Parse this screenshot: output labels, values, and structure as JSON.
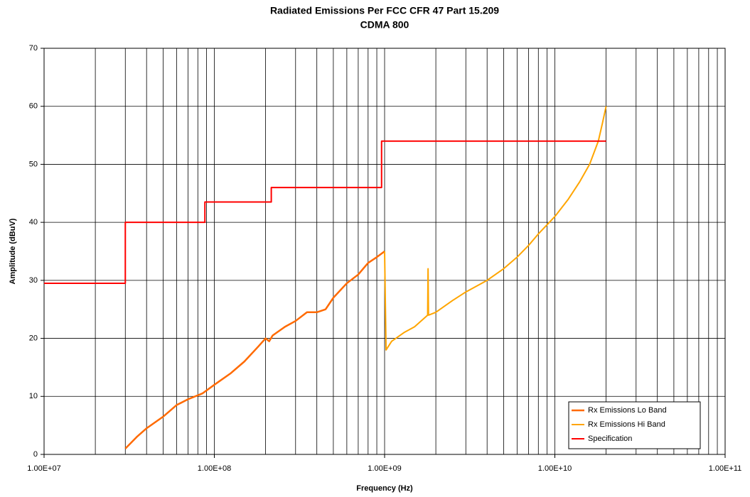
{
  "chart_data": {
    "type": "line",
    "title": "Radiated Emissions Per FCC CFR 47 Part 15.209",
    "subtitle": "CDMA 800",
    "x_label": "Frequency (Hz)",
    "y_label": "Amplitude (dBuV)",
    "log_x": true,
    "grid": true,
    "legend": "lower right",
    "xlim": [
      10000000,
      100000000000
    ],
    "ylim": [
      0,
      70
    ],
    "xticks": [
      {
        "value": 10000000,
        "label": "1.00E+07"
      },
      {
        "value": 100000000,
        "label": "1.00E+08"
      },
      {
        "value": 1000000000,
        "label": "1.00E+09"
      },
      {
        "value": 10000000000,
        "label": "1.00E+10"
      },
      {
        "value": 100000000000,
        "label": "1.00E+11"
      }
    ],
    "xminorticks": [
      20000000,
      30000000,
      40000000,
      50000000,
      60000000,
      70000000,
      80000000,
      90000000,
      200000000,
      300000000,
      400000000,
      500000000,
      600000000,
      700000000,
      800000000,
      900000000,
      2000000000,
      3000000000,
      4000000000,
      5000000000,
      6000000000,
      7000000000,
      8000000000,
      9000000000,
      20000000000,
      30000000000,
      40000000000,
      50000000000,
      60000000000,
      70000000000,
      80000000000,
      90000000000
    ],
    "yticks": [
      0,
      10,
      20,
      30,
      40,
      50,
      60,
      70
    ],
    "series": [
      {
        "name": "Rx Emissions Lo Band",
        "color": "#ff6a00",
        "width": 2.5,
        "x": [
          30000000,
          35000000,
          40000000,
          50000000,
          60000000,
          70000000,
          85000000,
          100000000,
          125000000,
          150000000,
          180000000,
          200000000,
          210000000,
          220000000,
          260000000,
          300000000,
          350000000,
          400000000,
          450000000,
          500000000,
          600000000,
          700000000,
          800000000,
          900000000,
          1000000000
        ],
        "values": [
          1,
          3,
          4.5,
          6.5,
          8.5,
          9.5,
          10.5,
          12,
          14,
          16,
          18.5,
          20,
          19.5,
          20.5,
          22,
          23,
          24.5,
          24.5,
          25,
          27,
          29.5,
          31,
          33,
          34,
          35
        ]
      },
      {
        "name": "Rx Emissions Hi Band",
        "color": "#ffa500",
        "width": 2,
        "x": [
          1000000000,
          1020000000,
          1100000000,
          1300000000,
          1500000000,
          1790000000,
          1800000000,
          1810000000,
          2000000000,
          2500000000,
          3000000000,
          4000000000,
          5000000000,
          6000000000,
          7000000000,
          8000000000,
          10000000000,
          12000000000,
          14000000000,
          16000000000,
          18000000000,
          19000000000,
          20000000000
        ],
        "values": [
          35,
          18,
          19.5,
          21,
          22,
          24,
          32,
          24,
          24.5,
          26.5,
          28,
          30,
          32,
          34,
          36,
          38,
          41,
          44,
          47,
          50,
          54,
          57,
          60
        ]
      },
      {
        "name": "Specification",
        "color": "#ff0000",
        "width": 2,
        "x": [
          10000000,
          30000000,
          30000000,
          88000000,
          88000000,
          216000000,
          216000000,
          960000000,
          960000000,
          20000000000
        ],
        "values": [
          29.5,
          29.5,
          40,
          40,
          43.5,
          43.5,
          46,
          46,
          54,
          54
        ]
      }
    ]
  }
}
